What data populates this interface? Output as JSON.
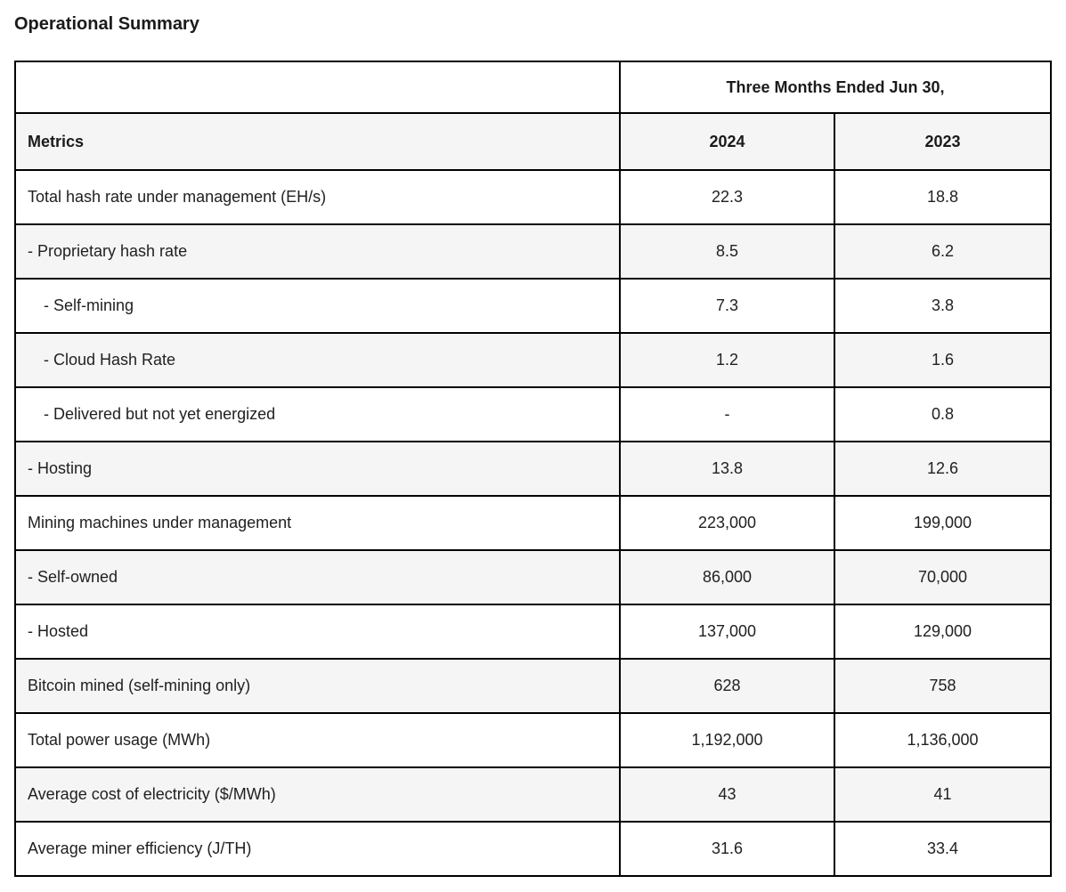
{
  "title": "Operational Summary",
  "table": {
    "header": {
      "period_label": "Three Months Ended Jun 30,",
      "metrics_label": "Metrics",
      "year_2024": "2024",
      "year_2023": "2023"
    },
    "rows": [
      {
        "label": "Total hash rate under management (EH/s)",
        "indent": 0,
        "v2024": "22.3",
        "v2023": "18.8"
      },
      {
        "label": "- Proprietary hash rate",
        "indent": 0,
        "v2024": "8.5",
        "v2023": "6.2"
      },
      {
        "label": "- Self-mining",
        "indent": 1,
        "v2024": "7.3",
        "v2023": "3.8"
      },
      {
        "label": "- Cloud Hash Rate",
        "indent": 1,
        "v2024": "1.2",
        "v2023": "1.6"
      },
      {
        "label": "- Delivered but not yet energized",
        "indent": 1,
        "v2024": "-",
        "v2023": "0.8"
      },
      {
        "label": "- Hosting",
        "indent": 0,
        "v2024": "13.8",
        "v2023": "12.6"
      },
      {
        "label": "Mining machines under management",
        "indent": 0,
        "v2024": "223,000",
        "v2023": "199,000"
      },
      {
        "label": "- Self-owned",
        "indent": 0,
        "v2024": "86,000",
        "v2023": "70,000"
      },
      {
        "label": "- Hosted",
        "indent": 0,
        "v2024": "137,000",
        "v2023": "129,000"
      },
      {
        "label": "Bitcoin mined (self-mining only)",
        "indent": 0,
        "v2024": "628",
        "v2023": "758"
      },
      {
        "label": "Total power usage (MWh)",
        "indent": 0,
        "v2024": "1,192,000",
        "v2023": "1,136,000"
      },
      {
        "label": "Average cost of electricity ($/MWh)",
        "indent": 0,
        "v2024": "43",
        "v2023": "41"
      },
      {
        "label": "Average miner efficiency (J/TH)",
        "indent": 0,
        "v2024": "31.6",
        "v2023": "33.4"
      }
    ],
    "colors": {
      "border": "#000000",
      "shaded_row_bg": "#f5f5f5",
      "text": "#212121"
    }
  }
}
